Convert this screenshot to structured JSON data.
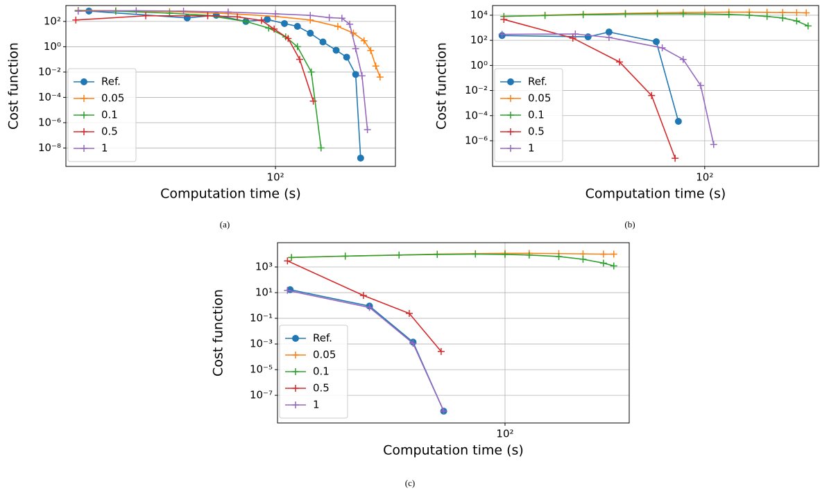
{
  "chart_data": [
    {
      "type": "line",
      "caption": "(a)",
      "xlabel": "Computation time (s)",
      "ylabel": "Cost function",
      "xscale": "log",
      "yscale": "log",
      "grid": true,
      "legend": "lower left",
      "xlim": [
        20.6,
        247
      ],
      "ylim": [
        3.5e-10,
        1800
      ],
      "xticks": [
        {
          "value": 100,
          "label": "10²"
        }
      ],
      "yticks": [
        {
          "value": 1e-08,
          "label": "10⁻⁸"
        },
        {
          "value": 1e-06,
          "label": "10⁻⁶"
        },
        {
          "value": 0.0001,
          "label": "10⁻⁴"
        },
        {
          "value": 0.01,
          "label": "10⁻²"
        },
        {
          "value": 1,
          "label": "10⁰"
        },
        {
          "value": 100,
          "label": "10²"
        }
      ],
      "series": [
        {
          "name": "Ref.",
          "color": "#1f77b4",
          "marker": "o",
          "x": [
            24.5,
            51.4,
            64,
            80,
            94,
            107,
            118,
            130,
            143,
            158,
            171,
            183,
            190
          ],
          "values": [
            660,
            190,
            310,
            100,
            146,
            68,
            41,
            11.7,
            2.4,
            0.53,
            0.15,
            0.0065,
            1.6e-09
          ]
        },
        {
          "name": "0.05",
          "color": "#ff7f0e",
          "marker": "+",
          "x": [
            22.6,
            30,
            45,
            70,
            100,
            130,
            160,
            180,
            195,
            205,
            213,
            220
          ],
          "values": [
            750,
            700,
            600,
            420,
            250,
            130,
            40,
            12,
            3,
            0.5,
            0.03,
            0.004
          ]
        },
        {
          "name": "0.1",
          "color": "#2ca02c",
          "marker": "+",
          "x": [
            22.6,
            30,
            45,
            60,
            80,
            95,
            108,
            118,
            131,
            141
          ],
          "values": [
            700,
            650,
            450,
            300,
            100,
            30,
            6,
            1,
            0.01,
            1e-08
          ]
        },
        {
          "name": "0.5",
          "color": "#d62728",
          "marker": "+",
          "x": [
            22.2,
            37.6,
            60,
            75,
            90,
            99,
            110,
            120,
            133
          ],
          "values": [
            130,
            280,
            280,
            230,
            120,
            25,
            4.5,
            0.1,
            5e-05
          ]
        },
        {
          "name": "1",
          "color": "#9467bd",
          "marker": "+",
          "x": [
            22.6,
            35,
            50,
            70,
            100,
            130,
            150,
            165,
            175,
            183,
            192,
            200
          ],
          "values": [
            650,
            700,
            650,
            550,
            400,
            300,
            200,
            180,
            60,
            0.7,
            0.005,
            2.8e-07
          ]
        }
      ]
    },
    {
      "type": "line",
      "caption": "(b)",
      "xlabel": "Computation time (s)",
      "ylabel": "Cost function",
      "xscale": "log",
      "yscale": "log",
      "grid": true,
      "legend": "lower left",
      "xlim": [
        20.2,
        236
      ],
      "ylim": [
        9e-09,
        59000
      ],
      "xticks": [
        {
          "value": 100,
          "label": "10²"
        }
      ],
      "yticks": [
        {
          "value": 1e-06,
          "label": "10⁻⁶"
        },
        {
          "value": 0.0001,
          "label": "10⁻⁴"
        },
        {
          "value": 0.01,
          "label": "10⁻²"
        },
        {
          "value": 1,
          "label": "10⁰"
        },
        {
          "value": 100,
          "label": "10²"
        },
        {
          "value": 10000,
          "label": "10⁴"
        }
      ],
      "series": [
        {
          "name": "Ref.",
          "color": "#1f77b4",
          "marker": "o",
          "x": [
            21.7,
            41.5,
            48.6,
            69.4,
            82
          ],
          "values": [
            240,
            190,
            460,
            78,
            3.5e-05
          ]
        },
        {
          "name": "0.05",
          "color": "#ff7f0e",
          "marker": "+",
          "x": [
            22,
            30,
            40,
            55,
            70,
            85,
            100,
            120,
            140,
            160,
            180,
            200,
            215
          ],
          "values": [
            8000,
            10000,
            12000,
            14000,
            15500,
            16500,
            17000,
            17500,
            17500,
            17000,
            16500,
            16000,
            15500
          ]
        },
        {
          "name": "0.1",
          "color": "#2ca02c",
          "marker": "+",
          "x": [
            22,
            30,
            40,
            55,
            70,
            85,
            100,
            120,
            140,
            160,
            180,
            200,
            218
          ],
          "values": [
            8000,
            9500,
            11000,
            12500,
            13000,
            13000,
            12500,
            11500,
            10000,
            8000,
            6000,
            3500,
            1400
          ]
        },
        {
          "name": "0.5",
          "color": "#d62728",
          "marker": "+",
          "x": [
            22,
            37,
            52.6,
            67,
            80
          ],
          "values": [
            4600,
            150,
            1.9,
            0.004,
            4e-08
          ]
        },
        {
          "name": "1",
          "color": "#9467bd",
          "marker": "+",
          "x": [
            21.7,
            37.7,
            48.6,
            72.6,
            85,
            97,
            107
          ],
          "values": [
            300,
            320,
            170,
            25,
            3,
            0.025,
            5e-07
          ]
        }
      ]
    },
    {
      "type": "line",
      "caption": "(c)",
      "xlabel": "Computation time (s)",
      "ylabel": "Cost function",
      "xscale": "log",
      "yscale": "log",
      "grid": true,
      "legend": "lower left",
      "xlim": [
        18,
        255
      ],
      "ylim": [
        7e-10,
        78000
      ],
      "xticks": [
        {
          "value": 100,
          "label": "10²"
        }
      ],
      "yticks": [
        {
          "value": 1e-07,
          "label": "10⁻⁷"
        },
        {
          "value": 1e-05,
          "label": "10⁻⁵"
        },
        {
          "value": 0.001,
          "label": "10⁻³"
        },
        {
          "value": 0.1,
          "label": "10⁻¹"
        },
        {
          "value": 10,
          "label": "10¹"
        },
        {
          "value": 1000,
          "label": "10³"
        }
      ],
      "series": [
        {
          "name": "Ref.",
          "color": "#1f77b4",
          "marker": "o",
          "x": [
            19.8,
            36,
            50,
            63
          ],
          "values": [
            17,
            0.9,
            0.0014,
            5.8e-09
          ]
        },
        {
          "name": "0.05",
          "color": "#ff7f0e",
          "marker": "+",
          "x": [
            20,
            30,
            45,
            60,
            80,
            100,
            120,
            150,
            180,
            210,
            227
          ],
          "values": [
            5500,
            7000,
            8500,
            10000,
            11000,
            11500,
            11500,
            11000,
            10500,
            10000,
            10000
          ]
        },
        {
          "name": "0.1",
          "color": "#2ca02c",
          "marker": "+",
          "x": [
            20,
            30,
            45,
            60,
            80,
            100,
            120,
            150,
            180,
            210,
            227
          ],
          "values": [
            5500,
            7000,
            8500,
            9500,
            10000,
            9500,
            8500,
            6500,
            4000,
            2000,
            1200
          ]
        },
        {
          "name": "0.5",
          "color": "#d62728",
          "marker": "+",
          "x": [
            19.4,
            34.4,
            48.6,
            61.8
          ],
          "values": [
            3000,
            6,
            0.24,
            0.00026
          ]
        },
        {
          "name": "1",
          "color": "#9467bd",
          "marker": "+",
          "x": [
            19.4,
            36,
            50,
            63
          ],
          "values": [
            15,
            0.7,
            0.0011,
            6e-09
          ]
        }
      ]
    }
  ]
}
